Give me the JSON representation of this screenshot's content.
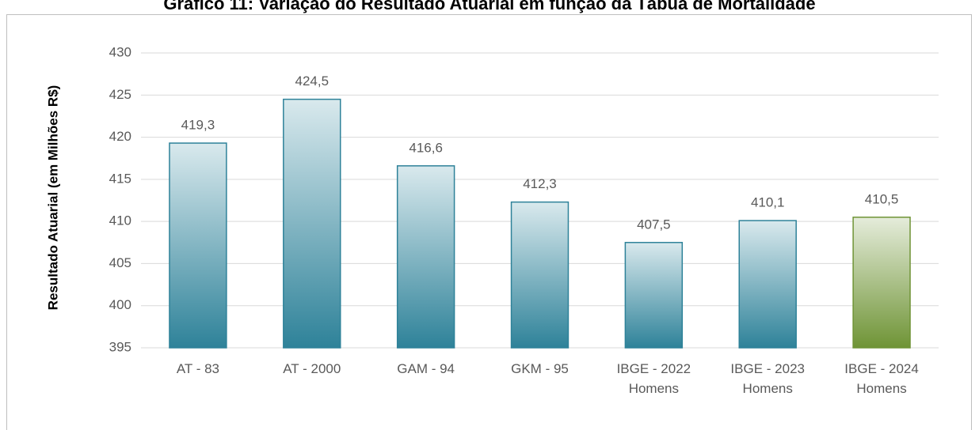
{
  "chart_data": {
    "type": "bar",
    "title": "Gráfico 11: Variação do Resultado Atuarial em função da Tábua de Mortalidade",
    "y_label": "Resultado Atuarial (em Milhões R$)",
    "categories": [
      "AT - 83",
      "AT - 2000",
      "GAM - 94",
      "GKM - 95",
      "IBGE - 2022\nHomens",
      "IBGE - 2023\nHomens",
      "IBGE - 2024\nHomens"
    ],
    "values": [
      419.3,
      424.5,
      416.6,
      412.3,
      407.5,
      410.1,
      410.5
    ],
    "value_labels": [
      "419,3",
      "424,5",
      "416,6",
      "412,3",
      "407,5",
      "410,1",
      "410,5"
    ],
    "colors": [
      "#2e8299",
      "#2e8299",
      "#2e8299",
      "#2e8299",
      "#2e8299",
      "#2e8299",
      "#6f9436"
    ],
    "ylim": [
      395,
      430
    ],
    "yticks": [
      395,
      400,
      405,
      410,
      415,
      420,
      425,
      430
    ],
    "grid": true
  }
}
